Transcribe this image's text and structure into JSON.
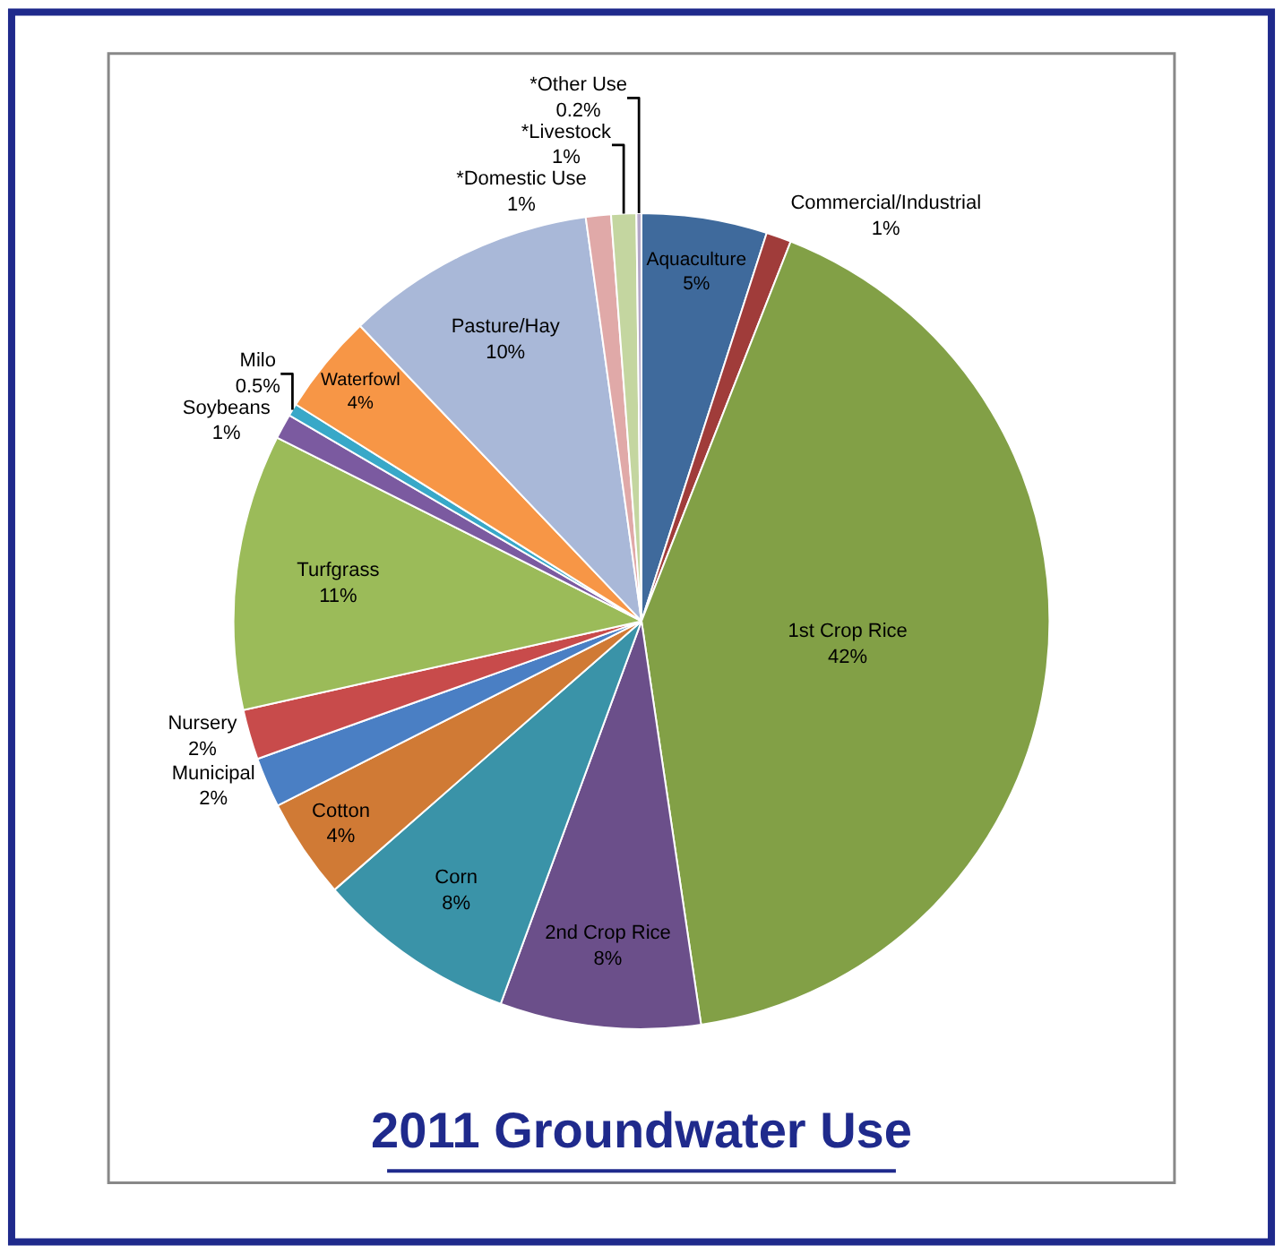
{
  "chart_data": {
    "type": "pie",
    "title": "2011 Groundwater Use",
    "categories": [
      "Aquaculture",
      "Commercial/Industrial",
      "1st Crop Rice",
      "2nd Crop Rice",
      "Corn",
      "Cotton",
      "Municipal",
      "Nursery",
      "Turfgrass",
      "Soybeans",
      "Milo",
      "Waterfowl",
      "Pasture/Hay",
      "*Domestic Use",
      "*Livestock",
      "*Other Use"
    ],
    "values": [
      5,
      1,
      42,
      8,
      8,
      4,
      2,
      2,
      11,
      1,
      0.5,
      4,
      10,
      1,
      1,
      0.2
    ],
    "value_labels": [
      "5%",
      "1%",
      "42%",
      "8%",
      "8%",
      "4%",
      "2%",
      "2%",
      "11%",
      "1%",
      "0.5%",
      "4%",
      "10%",
      "1%",
      "1%",
      "0.2%"
    ],
    "colors": [
      "#3f6a9c",
      "#a03c3a",
      "#82a046",
      "#6b4f8a",
      "#3a93a8",
      "#d07a35",
      "#4a7fc4",
      "#c84b4b",
      "#9bbb59",
      "#7b5aa0",
      "#38a8c8",
      "#f79646",
      "#a9b8d8",
      "#e0a9a8",
      "#c4d6a0",
      "#b4a8c8"
    ],
    "legend": false
  }
}
